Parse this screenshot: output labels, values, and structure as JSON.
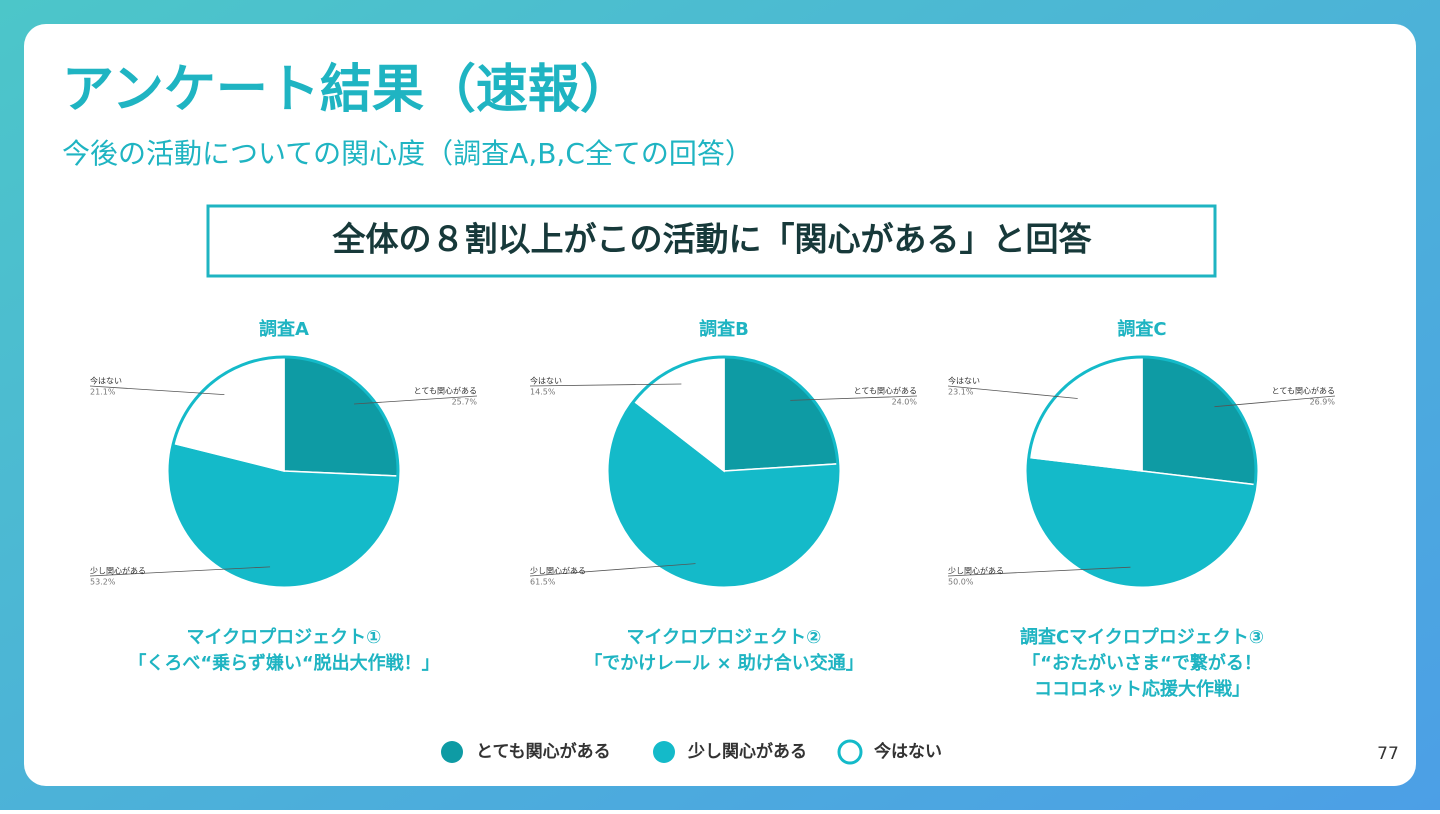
{
  "slide": {
    "title": "アンケート結果（速報）",
    "subtitle": "今後の活動についての関心度（調査A,B,C全ての回答）",
    "headline": "全体の８割以上がこの活動に「関心がある」と回答",
    "page_number": "77"
  },
  "chart_data": [
    {
      "type": "pie",
      "title": "調査A",
      "categories": [
        "とても関心がある",
        "少し関心がある",
        "今はない"
      ],
      "values": [
        25.7,
        53.2,
        21.1
      ],
      "value_labels": [
        "25.7%",
        "53.2%",
        "21.1%"
      ],
      "colors": [
        "#0e9ba4",
        "#14bac9",
        "#ffffff"
      ],
      "caption": [
        "マイクロプロジェクト①",
        "「くろべ“乗らず嫌い“脱出大作戦！」"
      ]
    },
    {
      "type": "pie",
      "title": "調査B",
      "categories": [
        "とても関心がある",
        "少し関心がある",
        "今はない"
      ],
      "values": [
        24.0,
        61.5,
        14.5
      ],
      "value_labels": [
        "24.0%",
        "61.5%",
        "14.5%"
      ],
      "colors": [
        "#0e9ba4",
        "#14bac9",
        "#ffffff"
      ],
      "caption": [
        "マイクロプロジェクト②",
        "「でかけレール × 助け合い交通」"
      ]
    },
    {
      "type": "pie",
      "title": "調査C",
      "categories": [
        "とても関心がある",
        "少し関心がある",
        "今はない"
      ],
      "values": [
        26.9,
        50.0,
        23.1
      ],
      "value_labels": [
        "26.9%",
        "50.0%",
        "23.1%"
      ],
      "colors": [
        "#0e9ba4",
        "#14bac9",
        "#ffffff"
      ],
      "caption": [
        "調査Cマイクロプロジェクト③",
        "「“おたがいさま“で繋がる！",
        "ココロネット応援大作戦」"
      ]
    }
  ]
}
